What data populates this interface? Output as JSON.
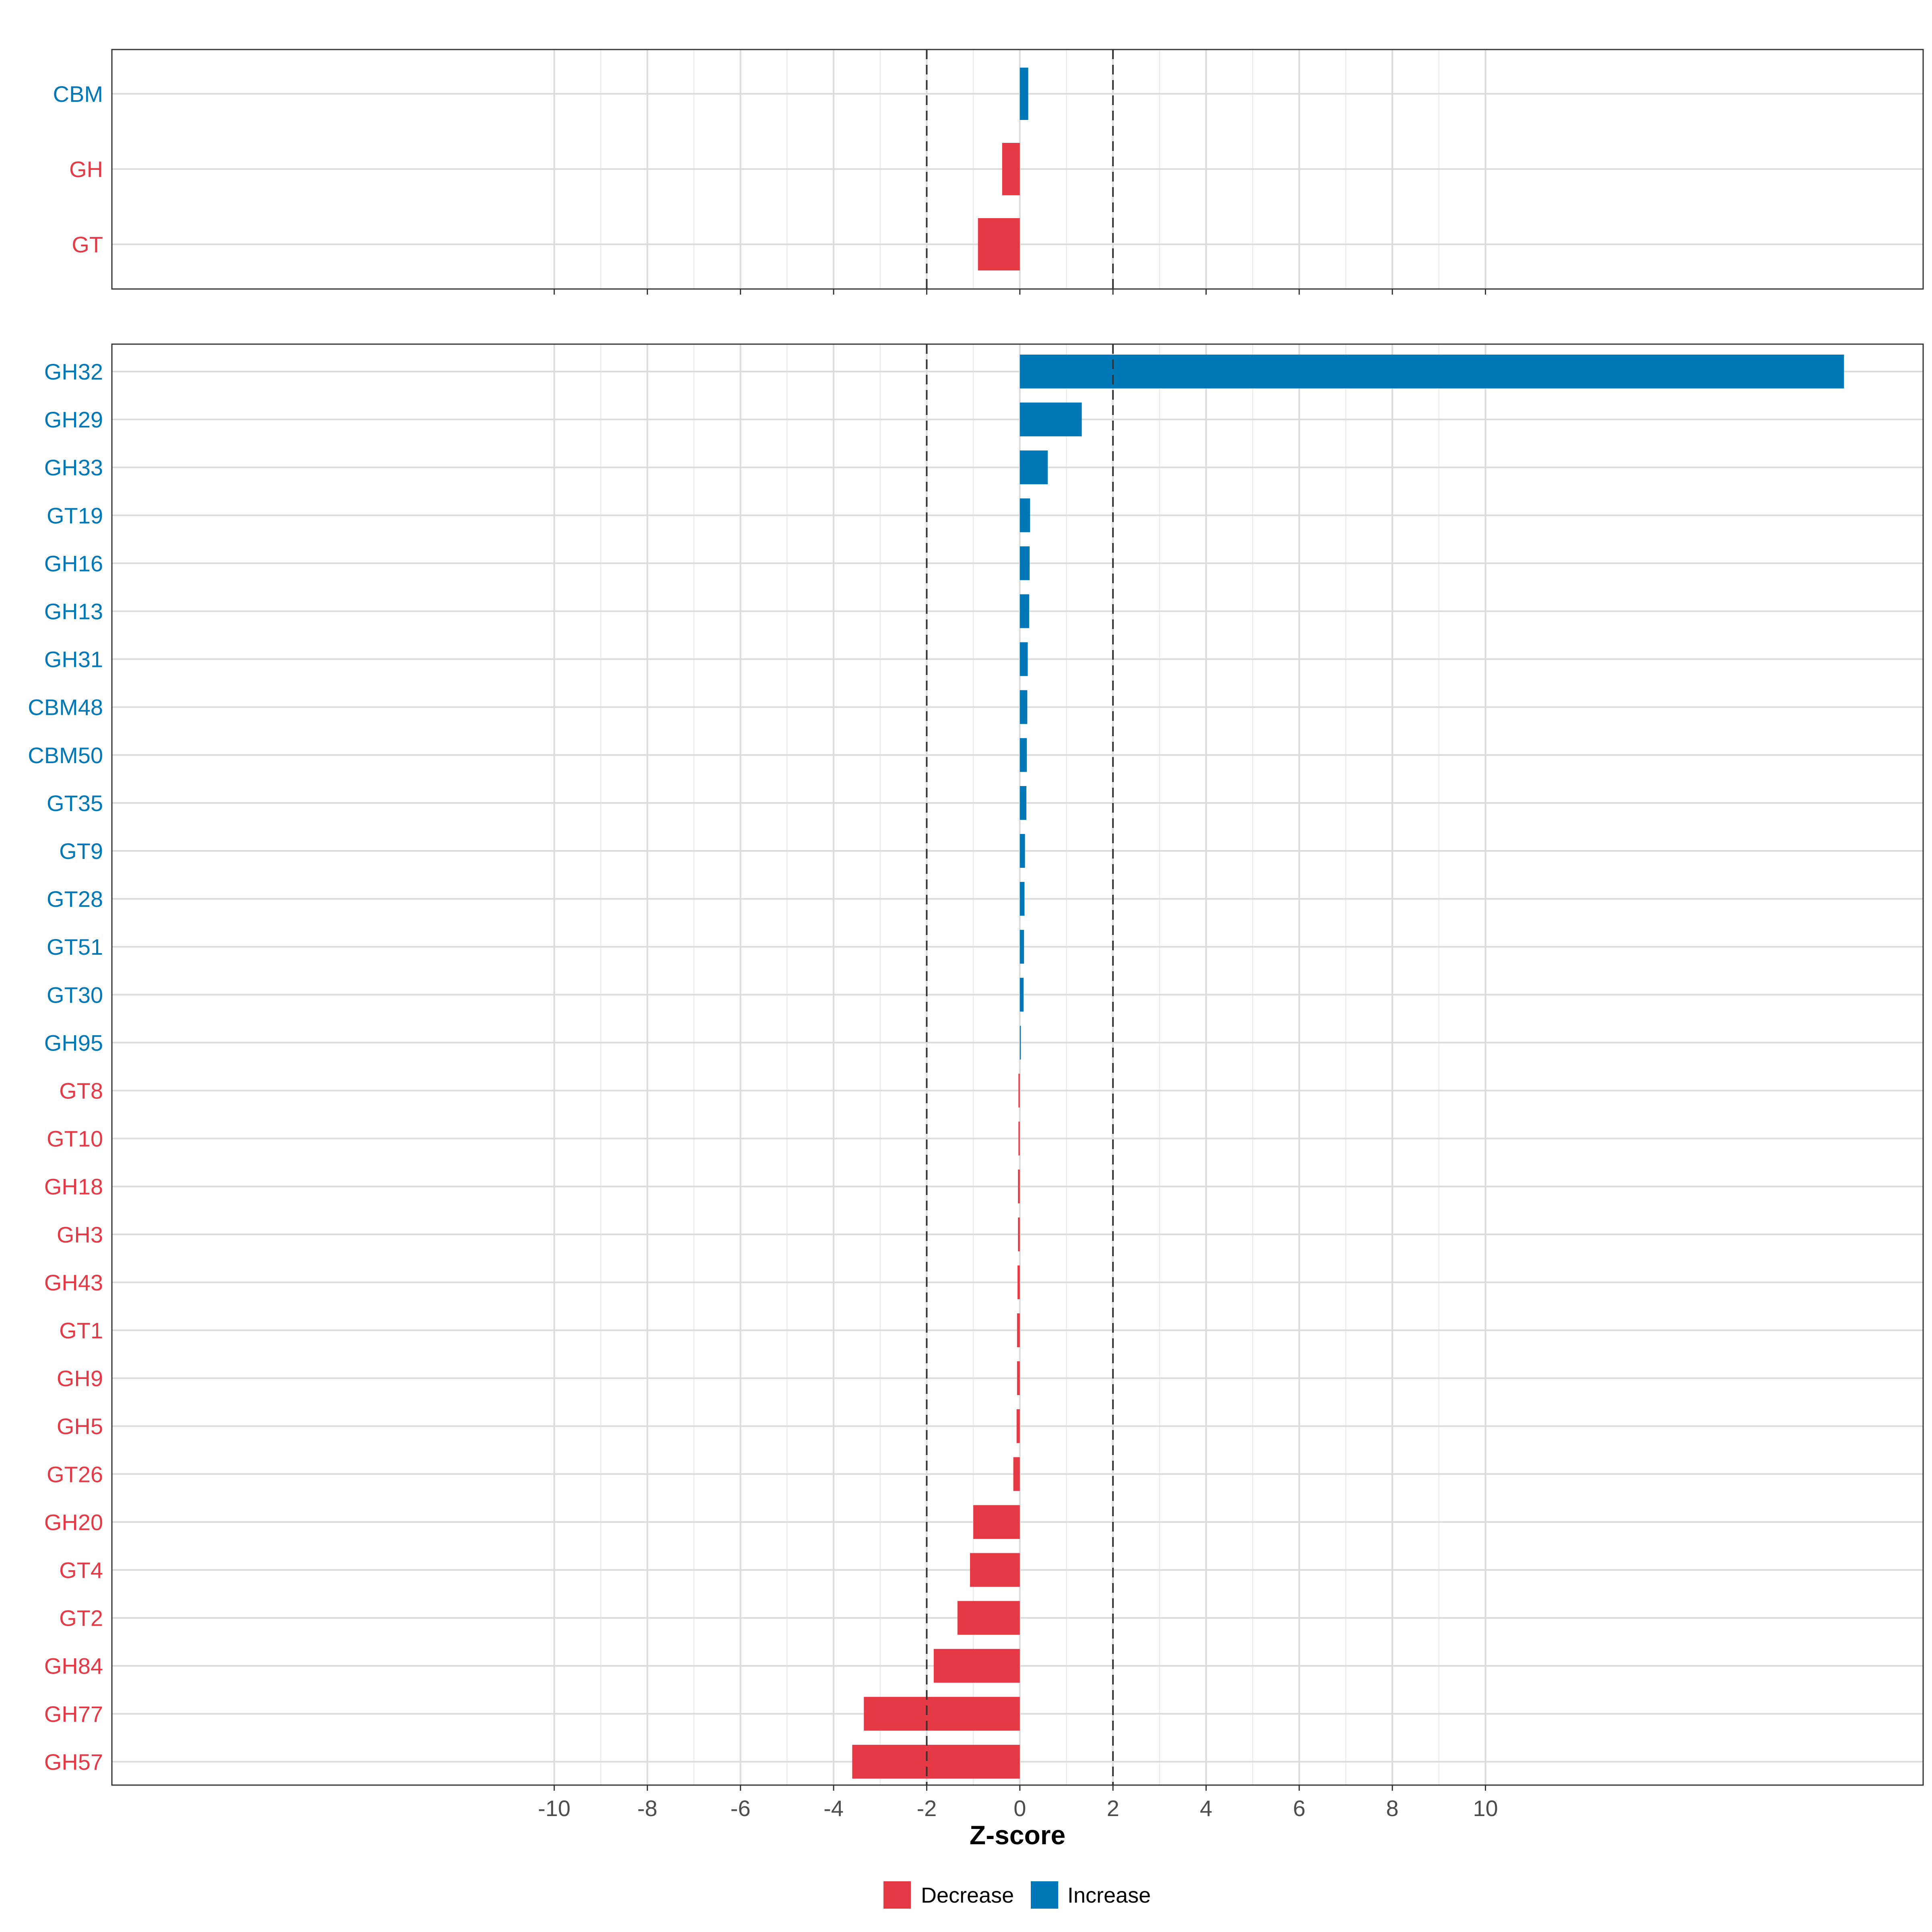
{
  "chart_data": {
    "type": "bar",
    "orientation": "horizontal",
    "xlabel": "Z-score",
    "x_ticks": [
      -10,
      -8,
      -6,
      -4,
      -2,
      0,
      2,
      4,
      6,
      8,
      10
    ],
    "xlim": [
      -19.5,
      19.4
    ],
    "threshold_lines": [
      -2,
      2
    ],
    "grid": true,
    "legend": {
      "position": "bottom",
      "entries": [
        {
          "label": "Decrease",
          "color": "#E63946"
        },
        {
          "label": "Increase",
          "color": "#0077B6"
        }
      ]
    },
    "panels": [
      {
        "name": "family",
        "categories": [
          "CBM",
          "GH",
          "GT"
        ],
        "values": [
          0.18,
          -0.38,
          -0.9
        ]
      },
      {
        "name": "subfamily",
        "categories": [
          "GH32",
          "GH29",
          "GH33",
          "GT19",
          "GH16",
          "GH13",
          "GH31",
          "CBM48",
          "CBM50",
          "GT35",
          "GT9",
          "GT28",
          "GT51",
          "GT30",
          "GH95",
          "GT8",
          "GT10",
          "GH18",
          "GH3",
          "GH43",
          "GT1",
          "GH9",
          "GH5",
          "GT26",
          "GH20",
          "GT4",
          "GT2",
          "GH84",
          "GH77",
          "GH57"
        ],
        "values": [
          17.7,
          1.33,
          0.6,
          0.22,
          0.21,
          0.2,
          0.17,
          0.16,
          0.15,
          0.14,
          0.11,
          0.1,
          0.09,
          0.08,
          0.02,
          -0.03,
          -0.03,
          -0.04,
          -0.04,
          -0.05,
          -0.06,
          -0.06,
          -0.07,
          -0.14,
          -1.0,
          -1.07,
          -1.34,
          -1.85,
          -3.35,
          -3.6
        ]
      }
    ]
  }
}
